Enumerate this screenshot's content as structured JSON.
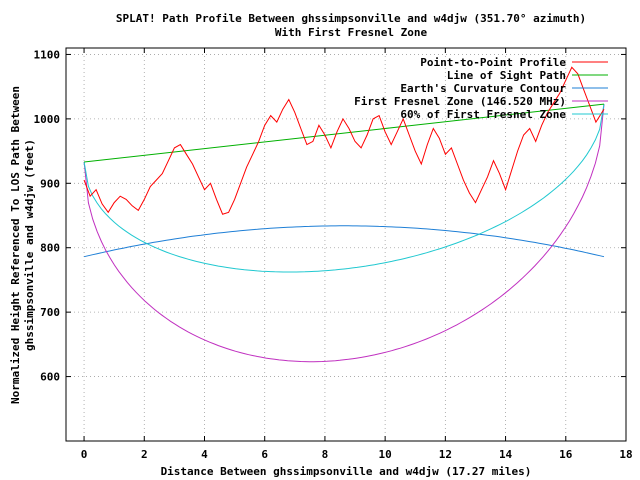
{
  "chart_data": {
    "type": "line",
    "title": "SPLAT! Path Profile Between ghssimpsonville and w4djw (351.70° azimuth)",
    "subtitle": "With First Fresnel Zone",
    "xlabel": "Distance Between ghssimpsonville and w4djw (17.27 miles)",
    "ylabel_line1": "Normalized Height Referenced To LOS Path Between",
    "ylabel_line2": "ghssimpsonville and w4djw (feet)",
    "xlim": [
      -0.6,
      18
    ],
    "ylim": [
      500,
      1110
    ],
    "x_ticks": [
      0,
      2,
      4,
      6,
      8,
      10,
      12,
      14,
      16,
      18
    ],
    "x_tick_labels": [
      "0",
      "2",
      "4",
      "6",
      "8",
      "10",
      "12",
      "14",
      "16",
      "18"
    ],
    "y_ticks": [
      600,
      700,
      800,
      900,
      1000,
      1100
    ],
    "y_tick_labels": [
      "600",
      "700",
      "800",
      "900",
      "1000",
      "1100"
    ],
    "grid": true,
    "legend_position": "top-right",
    "path_length": 17.27,
    "series": [
      {
        "name": "Point-to-Point Profile",
        "color": "#ff0000",
        "points": [
          [
            0,
            905
          ],
          [
            0.2,
            880
          ],
          [
            0.4,
            890
          ],
          [
            0.6,
            868
          ],
          [
            0.8,
            855
          ],
          [
            1.0,
            870
          ],
          [
            1.2,
            880
          ],
          [
            1.4,
            875
          ],
          [
            1.6,
            865
          ],
          [
            1.8,
            858
          ],
          [
            2.0,
            875
          ],
          [
            2.2,
            895
          ],
          [
            2.4,
            905
          ],
          [
            2.6,
            915
          ],
          [
            2.8,
            935
          ],
          [
            3.0,
            955
          ],
          [
            3.2,
            960
          ],
          [
            3.4,
            945
          ],
          [
            3.6,
            930
          ],
          [
            3.8,
            910
          ],
          [
            4.0,
            890
          ],
          [
            4.2,
            900
          ],
          [
            4.4,
            875
          ],
          [
            4.6,
            852
          ],
          [
            4.8,
            855
          ],
          [
            5.0,
            875
          ],
          [
            5.2,
            900
          ],
          [
            5.4,
            925
          ],
          [
            5.6,
            945
          ],
          [
            5.8,
            965
          ],
          [
            6.0,
            990
          ],
          [
            6.2,
            1005
          ],
          [
            6.4,
            995
          ],
          [
            6.6,
            1015
          ],
          [
            6.8,
            1030
          ],
          [
            7.0,
            1010
          ],
          [
            7.2,
            985
          ],
          [
            7.4,
            960
          ],
          [
            7.6,
            965
          ],
          [
            7.8,
            990
          ],
          [
            8.0,
            975
          ],
          [
            8.2,
            955
          ],
          [
            8.4,
            980
          ],
          [
            8.6,
            1000
          ],
          [
            8.8,
            985
          ],
          [
            9.0,
            965
          ],
          [
            9.2,
            955
          ],
          [
            9.4,
            975
          ],
          [
            9.6,
            1000
          ],
          [
            9.8,
            1005
          ],
          [
            10.0,
            980
          ],
          [
            10.2,
            960
          ],
          [
            10.4,
            980
          ],
          [
            10.6,
            1000
          ],
          [
            10.8,
            975
          ],
          [
            11.0,
            950
          ],
          [
            11.2,
            930
          ],
          [
            11.4,
            960
          ],
          [
            11.6,
            985
          ],
          [
            11.8,
            970
          ],
          [
            12.0,
            945
          ],
          [
            12.2,
            955
          ],
          [
            12.4,
            930
          ],
          [
            12.6,
            905
          ],
          [
            12.8,
            885
          ],
          [
            13.0,
            870
          ],
          [
            13.2,
            890
          ],
          [
            13.4,
            910
          ],
          [
            13.6,
            935
          ],
          [
            13.8,
            915
          ],
          [
            14.0,
            890
          ],
          [
            14.2,
            920
          ],
          [
            14.4,
            950
          ],
          [
            14.6,
            975
          ],
          [
            14.8,
            985
          ],
          [
            15.0,
            965
          ],
          [
            15.2,
            990
          ],
          [
            15.4,
            1010
          ],
          [
            15.6,
            1025
          ],
          [
            15.8,
            1040
          ],
          [
            16.0,
            1060
          ],
          [
            16.2,
            1080
          ],
          [
            16.4,
            1070
          ],
          [
            16.6,
            1045
          ],
          [
            16.8,
            1020
          ],
          [
            17.0,
            995
          ],
          [
            17.27,
            1015
          ]
        ]
      },
      {
        "name": "Line of Sight Path",
        "color": "#00b000"
      },
      {
        "name": "Earth's Curvature Contour",
        "color": "#1e7fd6"
      },
      {
        "name": "First Fresnel Zone (146.520 MHz)",
        "color": "#c030c0"
      },
      {
        "name": "60% of First Fresnel Zone",
        "color": "#20c8d0"
      }
    ],
    "los_endpoints": [
      933,
      1023
    ],
    "curvature_bulge": 48,
    "curvature_base": 786,
    "fresnel_depth": 352,
    "fresnel60_depth": 211
  }
}
